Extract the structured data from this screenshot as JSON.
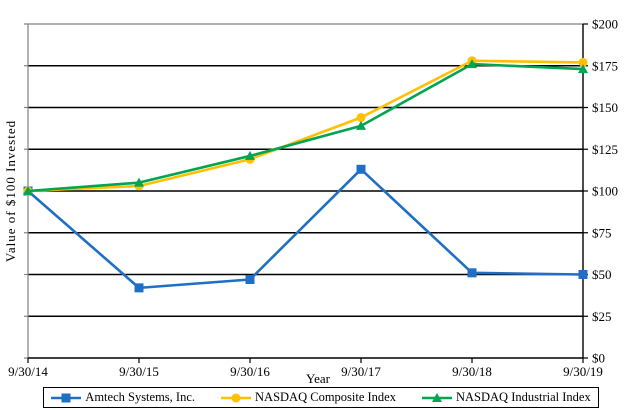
{
  "chart_data": {
    "type": "line",
    "title": "",
    "xlabel": "Year",
    "ylabel": "Value of $100 Invested",
    "categories": [
      "9/30/14",
      "9/30/15",
      "9/30/16",
      "9/30/17",
      "9/30/18",
      "9/30/19"
    ],
    "series": [
      {
        "name": "Amtech Systems, Inc.",
        "color": "#1F6FC4",
        "marker": "square",
        "values": [
          100,
          42,
          47,
          113,
          51,
          50
        ]
      },
      {
        "name": "NASDAQ Composite Index",
        "color": "#FFC000",
        "marker": "circle",
        "values": [
          100,
          103,
          119,
          144,
          178,
          177
        ]
      },
      {
        "name": "NASDAQ Industrial Index",
        "color": "#00A551",
        "marker": "triangle",
        "values": [
          100,
          105,
          121,
          139,
          176,
          173
        ]
      }
    ],
    "ylim": [
      0,
      200
    ],
    "y_tick_step": 25,
    "y_tick_labels": [
      "$0",
      "$25",
      "$50",
      "$75",
      "$100",
      "$125",
      "$150",
      "$175",
      "$200"
    ],
    "y_tick_side": "right",
    "grid": "horizontal",
    "gridline_color": "#000000",
    "border_color": "#808080",
    "legend_position": "bottom"
  }
}
